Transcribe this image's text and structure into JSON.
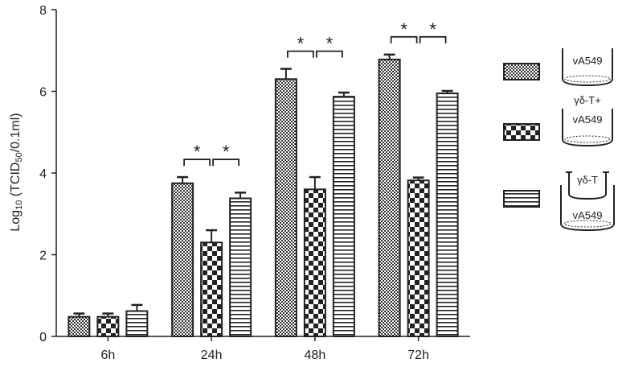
{
  "chart_data": {
    "type": "bar",
    "categories": [
      "6h",
      "24h",
      "48h",
      "72h"
    ],
    "ylim": [
      0,
      8
    ],
    "yticks": [
      "0",
      "2",
      "4",
      "6",
      "8"
    ],
    "ylabel": {
      "main": "Log",
      "sub1": "10",
      "mid": " (TCID",
      "sub2": "50",
      "end": "/0.1ml)"
    },
    "series": [
      {
        "name": "vA549",
        "pattern": "dots",
        "values": [
          0.48,
          3.75,
          6.3,
          6.78
        ],
        "errors": [
          0.08,
          0.15,
          0.25,
          0.12
        ]
      },
      {
        "name": "γδ-T+ vA549",
        "pattern": "checker",
        "values": [
          0.48,
          2.3,
          3.6,
          3.82
        ],
        "errors": [
          0.08,
          0.3,
          0.3,
          0.07
        ]
      },
      {
        "name": "γδ-T vA549",
        "pattern": "hlines",
        "values": [
          0.62,
          3.38,
          5.87,
          5.95
        ],
        "errors": [
          0.15,
          0.14,
          0.1,
          0.06
        ]
      }
    ],
    "significance": [
      {
        "category": 1,
        "from": 0,
        "to": 1,
        "label": "*"
      },
      {
        "category": 1,
        "from": 1,
        "to": 2,
        "label": "*"
      },
      {
        "category": 2,
        "from": 0,
        "to": 1,
        "label": "*"
      },
      {
        "category": 2,
        "from": 1,
        "to": 2,
        "label": "*"
      },
      {
        "category": 3,
        "from": 0,
        "to": 1,
        "label": "*"
      },
      {
        "category": 3,
        "from": 1,
        "to": 2,
        "label": "*"
      }
    ],
    "legend": [
      {
        "pattern": "dots",
        "lines": [
          "vA549"
        ],
        "inset": false
      },
      {
        "pattern": "checker",
        "lines": [
          "γδ-T+",
          "vA549"
        ],
        "inset": false
      },
      {
        "pattern": "hlines",
        "lines": [
          "γδ-T",
          "vA549"
        ],
        "inset": true
      }
    ],
    "legend_position": "right",
    "grid": false
  }
}
